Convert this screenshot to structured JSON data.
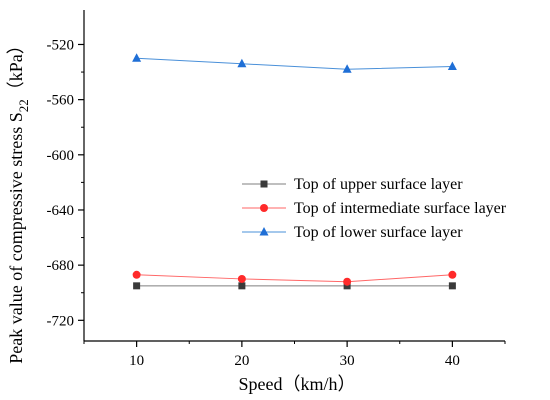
{
  "chart_data": {
    "type": "line",
    "title": "",
    "xlabel": "Speed（km/h）",
    "ylabel_main": "Peak value of compressive stress S",
    "ylabel_sub": "22",
    "ylabel_suffix": "（kPa）",
    "x": [
      10,
      20,
      30,
      40
    ],
    "xlim": [
      5,
      45
    ],
    "ylim": [
      -735,
      -495
    ],
    "x_ticks": [
      10,
      20,
      30,
      40
    ],
    "x_tick_labels": [
      "10",
      "20",
      "30",
      "40"
    ],
    "y_ticks": [
      -520,
      -560,
      -600,
      -640,
      -680,
      -720
    ],
    "y_tick_labels": [
      "-520",
      "-560",
      "-600",
      "-640",
      "-680",
      "-720"
    ],
    "grid": false,
    "legend_position": "center-right",
    "series": [
      {
        "name": "Top of upper surface layer",
        "values": [
          -695,
          -695,
          -695,
          -695
        ],
        "color": "#7f7f7f",
        "marker_color": "#3a3a3a",
        "marker": "square"
      },
      {
        "name": "Top of intermediate surface layer",
        "values": [
          -687,
          -690,
          -692,
          -687
        ],
        "color": "#ff6666",
        "marker_color": "#ff2a2a",
        "marker": "circle"
      },
      {
        "name": "Top of lower surface layer",
        "values": [
          -530,
          -534,
          -538,
          -536
        ],
        "color": "#4a90d9",
        "marker_color": "#1f6fd6",
        "marker": "triangle"
      }
    ]
  }
}
